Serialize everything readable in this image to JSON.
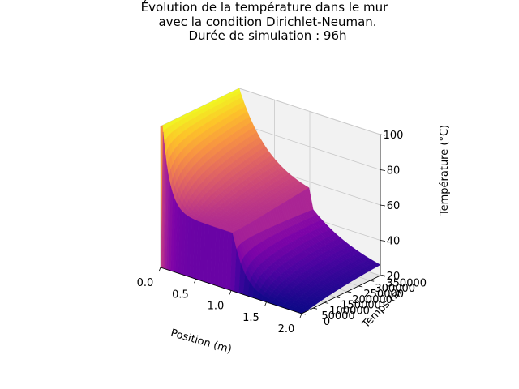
{
  "chart_data": {
    "type": "surface3d",
    "title_lines": [
      "Évolution de la température dans le mur",
      "avec la condition Dirichlet-Neuman.",
      "Durée de simulation : 96h"
    ],
    "xlabel": "Position (m)",
    "ylabel": "Temps (s)",
    "zlabel": "Température (°C)",
    "xlim": [
      0.0,
      2.0
    ],
    "ylim": [
      0,
      345600
    ],
    "zlim": [
      20,
      100
    ],
    "x_ticks": [
      "0.0",
      "0.5",
      "1.0",
      "1.5",
      "2.0"
    ],
    "y_ticks": [
      "0",
      "50000",
      "100000",
      "150000",
      "200000",
      "250000",
      "300000",
      "350000"
    ],
    "z_ticks": [
      "20",
      "40",
      "60",
      "80",
      "100"
    ],
    "colormap": "plasma",
    "boundary": {
      "x0_temperature": 100,
      "initial_temperature": 20
    },
    "interface_position": 1.0,
    "grid": true
  }
}
